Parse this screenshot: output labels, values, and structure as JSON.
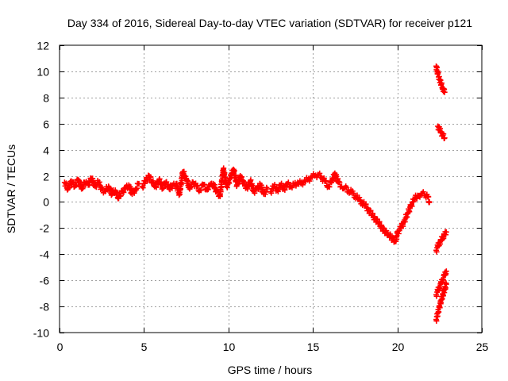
{
  "chart_data": {
    "type": "scatter",
    "title": "Day 334 of 2016, Sidereal Day-to-day VTEC variation (SDTVAR) for receiver p121",
    "xlabel": "GPS time / hours",
    "ylabel": "SDTVAR / TECUs",
    "xlim": [
      0,
      25
    ],
    "ylim": [
      -10,
      12
    ],
    "xticks": [
      0,
      5,
      10,
      15,
      20,
      25
    ],
    "yticks": [
      -10,
      -8,
      -6,
      -4,
      -2,
      0,
      2,
      4,
      6,
      8,
      10,
      12
    ],
    "grid": true,
    "marker": "plus",
    "color": "#ff0000",
    "series": [
      {
        "segments": [
          [
            [
              0.3,
              1.5
            ],
            [
              0.5,
              1.0
            ],
            [
              0.7,
              1.6
            ],
            [
              0.9,
              1.2
            ],
            [
              1.1,
              1.7
            ],
            [
              1.3,
              1.0
            ],
            [
              1.5,
              1.5
            ],
            [
              1.7,
              1.3
            ],
            [
              1.9,
              1.8
            ],
            [
              2.1,
              1.2
            ],
            [
              2.3,
              1.5
            ],
            [
              2.5,
              1.0
            ],
            [
              2.7,
              0.8
            ],
            [
              2.9,
              1.2
            ],
            [
              3.1,
              0.6
            ],
            [
              3.3,
              0.9
            ],
            [
              3.5,
              0.3
            ],
            [
              3.7,
              0.8
            ],
            [
              3.9,
              1.0
            ],
            [
              4.1,
              1.3
            ],
            [
              4.3,
              0.6
            ],
            [
              4.5,
              1.0
            ],
            [
              4.7,
              1.4
            ]
          ],
          [
            [
              4.9,
              1.2
            ],
            [
              5.1,
              1.6
            ],
            [
              5.3,
              2.0
            ],
            [
              5.5,
              1.5
            ],
            [
              5.7,
              1.2
            ],
            [
              5.9,
              1.7
            ],
            [
              6.1,
              1.1
            ],
            [
              6.3,
              1.5
            ],
            [
              6.5,
              1.0
            ],
            [
              6.7,
              1.3
            ],
            [
              6.9,
              1.4
            ],
            [
              7.1,
              0.6
            ],
            [
              7.3,
              2.3
            ],
            [
              7.5,
              1.8
            ],
            [
              7.7,
              1.0
            ],
            [
              7.9,
              1.5
            ],
            [
              8.1,
              1.2
            ],
            [
              8.3,
              0.9
            ],
            [
              8.5,
              1.3
            ],
            [
              8.7,
              1.0
            ],
            [
              8.9,
              1.2
            ],
            [
              9.1,
              1.4
            ],
            [
              9.3,
              0.8
            ],
            [
              9.5,
              0.5
            ],
            [
              9.7,
              2.5
            ],
            [
              9.9,
              1.2
            ],
            [
              10.1,
              1.8
            ],
            [
              10.3,
              2.5
            ],
            [
              10.5,
              1.3
            ],
            [
              10.7,
              2.0
            ],
            [
              10.9,
              1.4
            ],
            [
              11.1,
              1.1
            ],
            [
              11.3,
              1.6
            ],
            [
              11.5,
              0.8
            ],
            [
              11.7,
              1.0
            ],
            [
              11.9,
              1.3
            ],
            [
              12.1,
              0.6
            ],
            [
              12.3,
              1.0
            ]
          ],
          [
            [
              12.5,
              0.8
            ],
            [
              12.7,
              1.2
            ],
            [
              12.9,
              0.9
            ],
            [
              13.1,
              1.3
            ],
            [
              13.3,
              1.0
            ],
            [
              13.5,
              1.4
            ],
            [
              13.7,
              1.2
            ],
            [
              13.9,
              1.3
            ],
            [
              14.1,
              1.5
            ],
            [
              14.3,
              1.4
            ],
            [
              14.5,
              1.6
            ],
            [
              14.7,
              1.7
            ],
            [
              14.9,
              1.9
            ],
            [
              15.1,
              2.0
            ],
            [
              15.3,
              2.1
            ],
            [
              15.5,
              1.9
            ],
            [
              15.7,
              1.6
            ],
            [
              15.9,
              1.2
            ],
            [
              16.1,
              1.5
            ],
            [
              16.3,
              2.2
            ],
            [
              16.5,
              1.5
            ],
            [
              16.7,
              1.2
            ],
            [
              16.9,
              1.1
            ],
            [
              17.1,
              0.9
            ],
            [
              17.3,
              0.7
            ],
            [
              17.5,
              0.5
            ],
            [
              17.7,
              0.2
            ],
            [
              17.9,
              0.0
            ],
            [
              18.1,
              -0.3
            ],
            [
              18.3,
              -0.6
            ],
            [
              18.5,
              -1.0
            ],
            [
              18.7,
              -1.3
            ],
            [
              18.9,
              -1.6
            ],
            [
              19.1,
              -2.0
            ],
            [
              19.3,
              -2.3
            ],
            [
              19.5,
              -2.5
            ],
            [
              19.7,
              -2.8
            ],
            [
              19.9,
              -3.0
            ],
            [
              20.0,
              -2.4
            ],
            [
              20.2,
              -2.0
            ],
            [
              20.4,
              -1.5
            ],
            [
              20.6,
              -0.9
            ],
            [
              20.8,
              -0.3
            ],
            [
              21.0,
              0.2
            ],
            [
              21.2,
              0.5
            ],
            [
              21.4,
              0.6
            ],
            [
              21.6,
              0.6
            ],
            [
              21.8,
              0.4
            ],
            [
              21.9,
              0.0
            ]
          ],
          [
            [
              22.3,
              10.4
            ],
            [
              22.4,
              9.8
            ],
            [
              22.5,
              9.4
            ],
            [
              22.6,
              9.0
            ],
            [
              22.7,
              8.7
            ],
            [
              22.8,
              8.4
            ]
          ],
          [
            [
              22.4,
              5.8
            ],
            [
              22.5,
              5.5
            ],
            [
              22.6,
              5.3
            ],
            [
              22.7,
              5.1
            ],
            [
              22.8,
              4.9
            ]
          ],
          [
            [
              22.3,
              -3.7
            ],
            [
              22.4,
              -3.4
            ],
            [
              22.5,
              -3.1
            ],
            [
              22.6,
              -2.9
            ],
            [
              22.7,
              -2.7
            ],
            [
              22.8,
              -2.5
            ],
            [
              22.9,
              -2.3
            ]
          ],
          [
            [
              22.3,
              -9.0
            ],
            [
              22.4,
              -8.5
            ],
            [
              22.5,
              -8.0
            ],
            [
              22.6,
              -7.5
            ],
            [
              22.7,
              -7.1
            ],
            [
              22.8,
              -6.7
            ],
            [
              22.9,
              -6.3
            ]
          ],
          [
            [
              22.3,
              -7.1
            ],
            [
              22.4,
              -6.8
            ],
            [
              22.5,
              -6.5
            ],
            [
              22.6,
              -6.2
            ],
            [
              22.7,
              -5.9
            ],
            [
              22.8,
              -5.6
            ],
            [
              22.9,
              -5.3
            ]
          ]
        ]
      }
    ]
  }
}
